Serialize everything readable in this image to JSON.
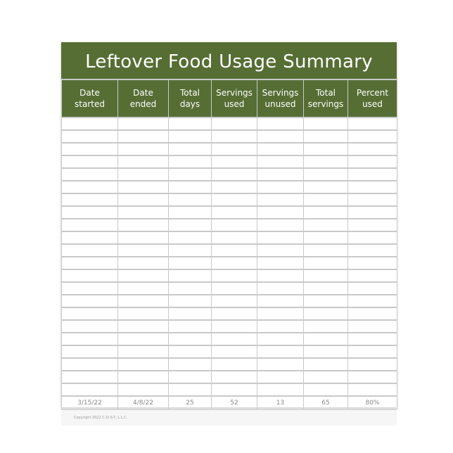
{
  "title": "Leftover Food Usage Summary",
  "columns": [
    [
      "Date",
      "started"
    ],
    [
      "Date",
      "ended"
    ],
    [
      "Total",
      "days"
    ],
    [
      "Servings",
      "used"
    ],
    [
      "Servings",
      "unused"
    ],
    [
      "Total",
      "servings"
    ],
    [
      "Percent",
      "used"
    ]
  ],
  "blank_rows": 22,
  "example_row": [
    "3/15/22",
    "4/8/22",
    "25",
    "52",
    "13",
    "65",
    "80%"
  ],
  "copyright": "Copyright 2022 C-O-S-T, L.L.C.",
  "colors": {
    "header_green": "#566e34",
    "grid": "#c9c9c9"
  }
}
